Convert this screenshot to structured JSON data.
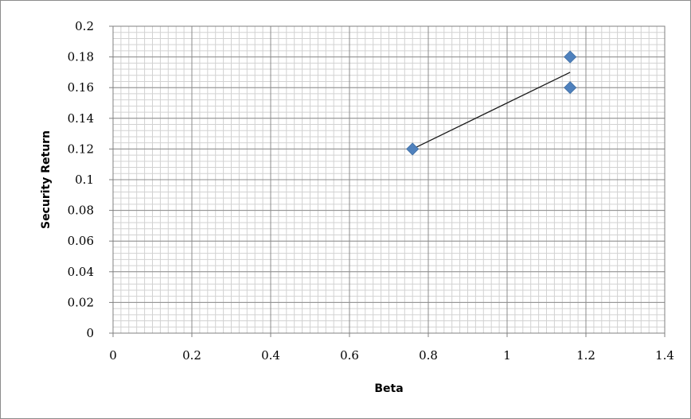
{
  "chart_data": {
    "type": "scatter",
    "title": "",
    "xlabel": "Beta",
    "ylabel": "Security Return",
    "xlim": [
      0,
      1.4
    ],
    "ylim": [
      0,
      0.2
    ],
    "x_ticks": [
      "0",
      "0.2",
      "0.4",
      "0.6",
      "0.8",
      "1",
      "1.2",
      "1.4"
    ],
    "y_ticks": [
      "0",
      "0.02",
      "0.04",
      "0.06",
      "0.08",
      "0.1",
      "0.12",
      "0.14",
      "0.16",
      "0.18",
      "0.2"
    ],
    "x_tick_values": [
      0,
      0.2,
      0.4,
      0.6,
      0.8,
      1.0,
      1.2,
      1.4
    ],
    "y_tick_values": [
      0,
      0.02,
      0.04,
      0.06,
      0.08,
      0.1,
      0.12,
      0.14,
      0.16,
      0.18,
      0.2
    ],
    "grid": true,
    "legend": "none",
    "marker": "diamond",
    "marker_color": "#4f81bd",
    "line_color": "#1a1a1a",
    "series": [
      {
        "points": [
          {
            "x": 0.76,
            "y": 0.12
          },
          {
            "x": 1.16,
            "y": 0.18
          },
          {
            "x": 1.16,
            "y": 0.16
          }
        ]
      }
    ],
    "line": {
      "points": [
        {
          "x": 0.76,
          "y": 0.12
        },
        {
          "x": 1.16,
          "y": 0.17
        }
      ]
    }
  }
}
